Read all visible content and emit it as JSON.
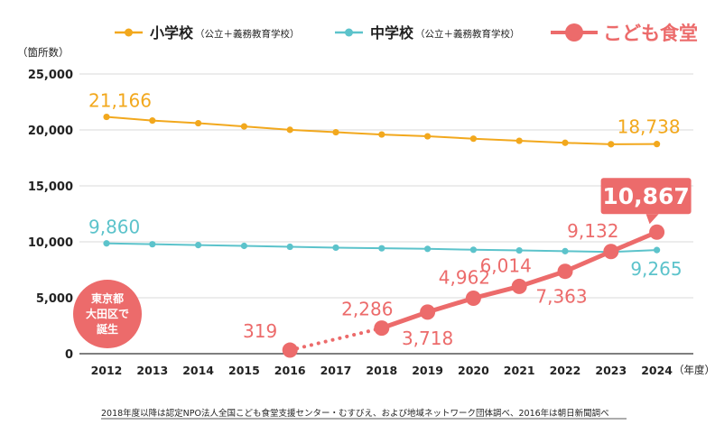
{
  "chart_data": {
    "type": "line",
    "ylabel": "（箇所数）",
    "xunit": "（年度）",
    "ylim": [
      0,
      25000
    ],
    "yticks": [
      "25,000",
      "20,000",
      "15,000",
      "10,000",
      "5,000",
      "0"
    ],
    "x": [
      "2012",
      "2013",
      "2014",
      "2015",
      "2016",
      "2017",
      "2018",
      "2019",
      "2020",
      "2021",
      "2022",
      "2023",
      "2024"
    ],
    "grid": "horizontal",
    "legend_position": "top",
    "series": [
      {
        "key": "elementary",
        "name": "小学校",
        "note": "（公立＋義務教育学校）",
        "color": "#F2A81D",
        "values": [
          21166,
          20836,
          20601,
          20313,
          20011,
          19794,
          19591,
          19432,
          19217,
          19028,
          18850,
          18722,
          18738
        ],
        "labels": [
          "21,166",
          "18,738"
        ]
      },
      {
        "key": "junior",
        "name": "中学校",
        "note": "（公立＋義務教育学校）",
        "color": "#5CC3CB",
        "values": [
          9860,
          9784,
          9707,
          9637,
          9555,
          9479,
          9421,
          9371,
          9291,
          9230,
          9164,
          9095,
          9265
        ],
        "labels": [
          "9,860",
          "9,265"
        ]
      },
      {
        "key": "kodomo",
        "name": "こども食堂",
        "color": "#EC6B6B",
        "x": [
          "2016",
          "2018",
          "2019",
          "2020",
          "2021",
          "2022",
          "2023",
          "2024"
        ],
        "values": [
          319,
          2286,
          3718,
          4962,
          6014,
          7363,
          9132,
          10867
        ],
        "labels": [
          "319",
          "2,286",
          "3,718",
          "4,962",
          "6,014",
          "7,363",
          "9,132",
          "10,867"
        ]
      }
    ],
    "annotations": {
      "origin_callout": [
        "東京都",
        "大田区で",
        "誕生"
      ]
    }
  },
  "note": "2018年度以降は認定NPO法人全国こども食堂支援センター・むすびえ、および地域ネットワーク団体調べ、2016年は朝日新聞調べ"
}
